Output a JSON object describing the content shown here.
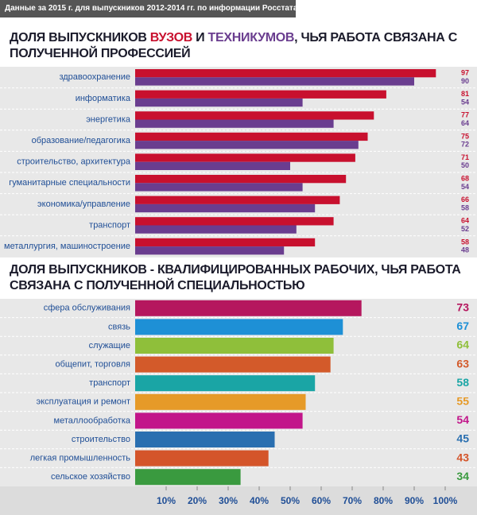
{
  "chart_data": [
    {
      "type": "bar",
      "orientation": "horizontal",
      "subtitle": "Данные за 2015 г. для выпускников 2012-2014 гг. по информации Росстата",
      "title_parts": [
        "ДОЛЯ ВЫПУСКНИКОВ",
        "И",
        ", ЧЬЯ РАБОТА СВЯЗАНА С ПОЛУЧЕННОЙ ПРОФЕССИЕЙ"
      ],
      "categories": [
        "здравоохранение",
        "информатика",
        "энергетика",
        "образование/педагогика",
        "строительство, архитектура",
        "гуманитарные специальности",
        "экономика/управление",
        "транспорт",
        "металлургия, машиностроение"
      ],
      "series": [
        {
          "name": "ВУЗОВ",
          "color": "#c8102e",
          "values": [
            97,
            81,
            77,
            75,
            71,
            68,
            66,
            64,
            58
          ]
        },
        {
          "name": "ТЕХНИКУМОВ",
          "color": "#6a3d8f",
          "values": [
            90,
            54,
            64,
            72,
            50,
            54,
            58,
            52,
            48
          ]
        }
      ],
      "xlim": [
        0,
        100
      ]
    },
    {
      "type": "bar",
      "orientation": "horizontal",
      "title": "ДОЛЯ ВЫПУСКНИКОВ - КВАЛИФИЦИРОВАННЫХ РАБОЧИХ, ЧЬЯ РАБОТА СВЯЗАНА С ПОЛУЧЕННОЙ СПЕЦИАЛЬНОСТЬЮ",
      "categories": [
        "сфера обслуживания",
        "связь",
        "служащие",
        "общепит, торговля",
        "транспорт",
        "эксплуатация и ремонт",
        "металлообработка",
        "строительство",
        "легкая промышленность",
        "сельское хозяйство"
      ],
      "values": [
        73,
        67,
        64,
        63,
        58,
        55,
        54,
        45,
        43,
        34
      ],
      "colors": [
        "#b5175e",
        "#1e90d6",
        "#8fbf3a",
        "#d35a2a",
        "#1aa5a5",
        "#e69a28",
        "#c2168a",
        "#2a6fb0",
        "#d4552a",
        "#3a9a3f"
      ],
      "xlim": [
        0,
        100
      ],
      "xticks": [
        {
          "value": 10,
          "label": "10%"
        },
        {
          "value": 20,
          "label": "20%"
        },
        {
          "value": 30,
          "label": "30%"
        },
        {
          "value": 40,
          "label": "40%"
        },
        {
          "value": 50,
          "label": "50%"
        },
        {
          "value": 60,
          "label": "60%"
        },
        {
          "value": 70,
          "label": "70%"
        },
        {
          "value": 80,
          "label": "80%"
        },
        {
          "value": 90,
          "label": "90%"
        },
        {
          "value": 100,
          "label": "100%"
        }
      ]
    }
  ]
}
